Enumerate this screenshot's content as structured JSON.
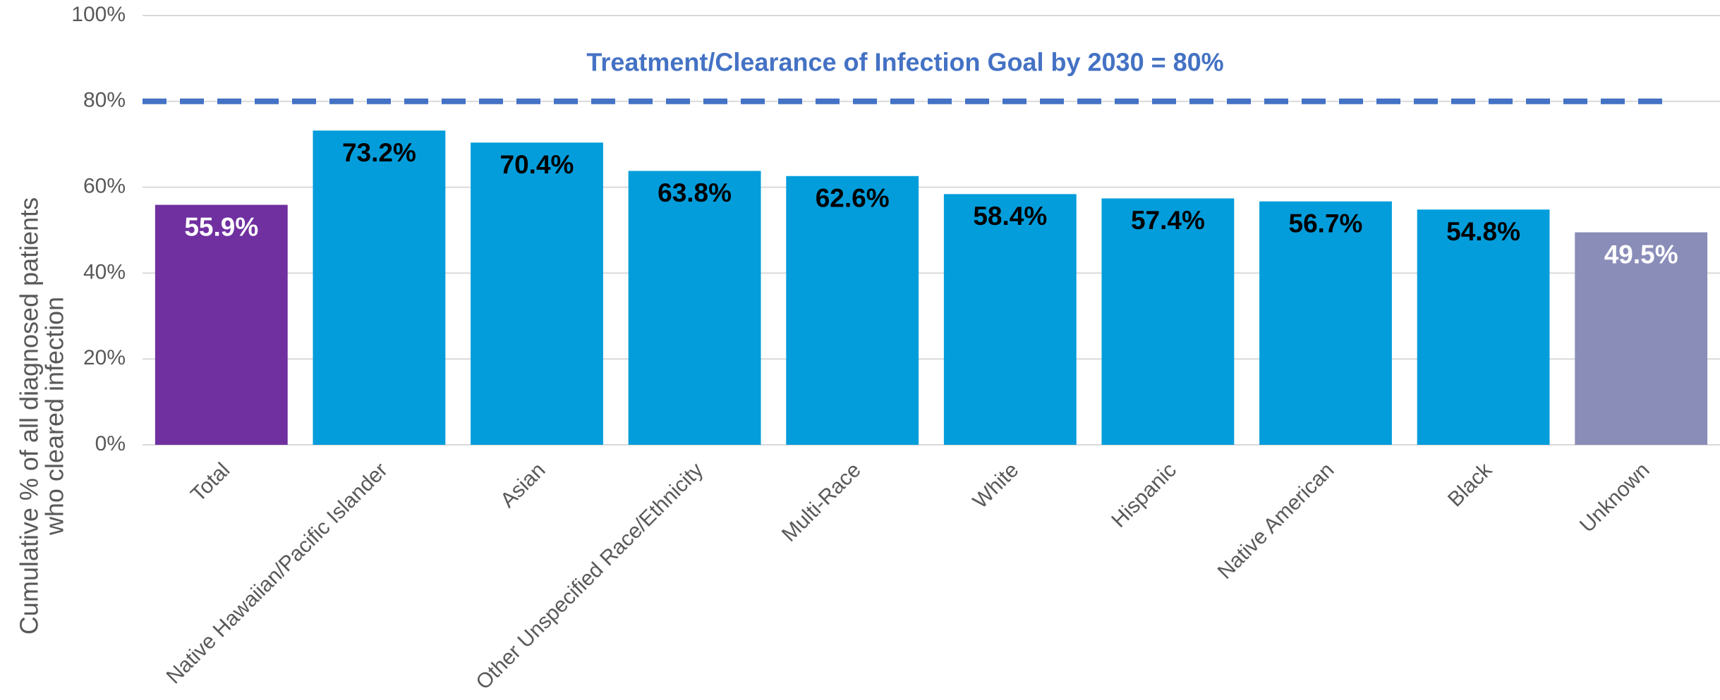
{
  "chart_data": {
    "type": "bar",
    "y_label": [
      "Cumulative % of all diagnosed patients",
      "who cleared infection"
    ],
    "annotation": "Treatment/Clearance of Infection Goal by 2030  = 80%",
    "goal": 80,
    "goal_color": "#4472c4",
    "categories": [
      "Total",
      "Native Hawaiian/Pacific Islander",
      "Asian",
      "Other Unspecified Race/Ethnicity",
      "Multi-Race",
      "White",
      "Hispanic",
      "Native American",
      "Black",
      "Unknown"
    ],
    "values": [
      55.9,
      73.2,
      70.4,
      63.8,
      62.6,
      58.4,
      57.4,
      56.7,
      54.8,
      49.5
    ],
    "value_labels": [
      "55.9%",
      "73.2%",
      "70.4%",
      "63.8%",
      "62.6%",
      "58.4%",
      "57.4%",
      "56.7%",
      "54.8%",
      "49.5%"
    ],
    "colors": [
      "#7030a0",
      "#039ddb",
      "#039ddb",
      "#039ddb",
      "#039ddb",
      "#039ddb",
      "#039ddb",
      "#039ddb",
      "#039ddb",
      "#8a8db8"
    ],
    "label_colors": [
      "#ffffff",
      "#000000",
      "#000000",
      "#000000",
      "#000000",
      "#000000",
      "#000000",
      "#000000",
      "#000000",
      "#ffffff"
    ],
    "ylim": [
      0,
      100
    ],
    "yticks": [
      {
        "value": 0,
        "label": "0%"
      },
      {
        "value": 20,
        "label": "20%"
      },
      {
        "value": 40,
        "label": "40%"
      },
      {
        "value": 60,
        "label": "60%"
      },
      {
        "value": 80,
        "label": "80%"
      },
      {
        "value": 100,
        "label": "100%"
      }
    ],
    "grid": true
  }
}
